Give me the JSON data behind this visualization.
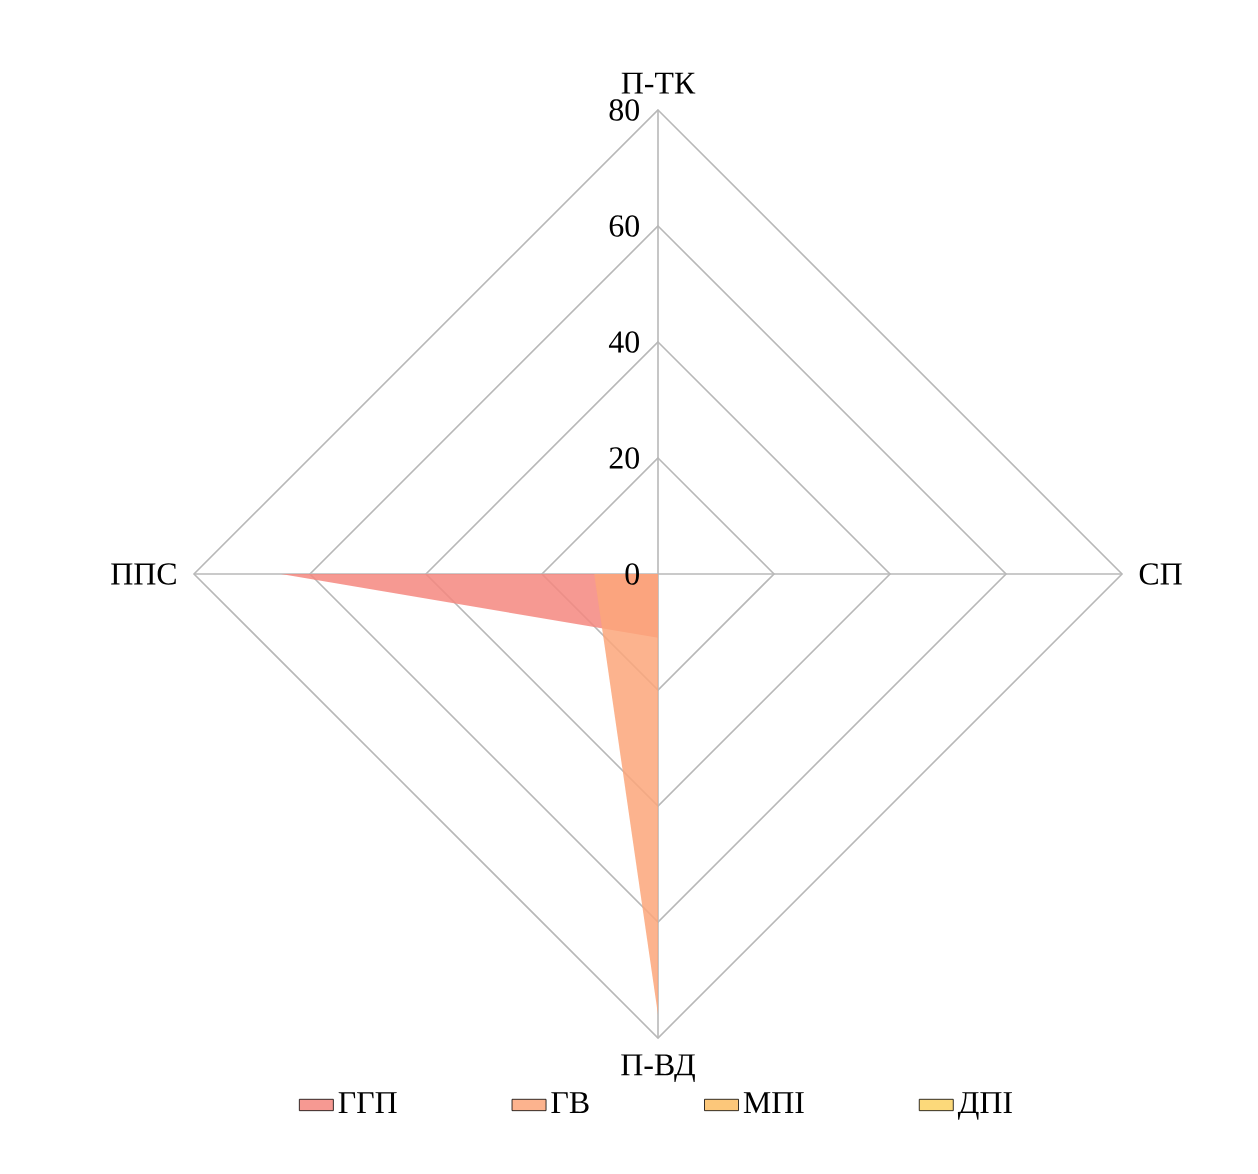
{
  "chart_data": {
    "type": "radar",
    "categories": [
      "П-ТК",
      "СП",
      "П-ВД",
      "ППС"
    ],
    "series": [
      {
        "name": "ГГП",
        "color": "#f4877f",
        "values": [
          0,
          0,
          11,
          65
        ]
      },
      {
        "name": "ГВ",
        "color": "#fca67a",
        "values": [
          0,
          0,
          76,
          11
        ]
      },
      {
        "name": "МПІ",
        "color": "#fcc77a",
        "values": [
          null,
          null,
          null,
          null
        ]
      },
      {
        "name": "ДПІ",
        "color": "#fcd97a",
        "values": [
          null,
          null,
          null,
          null
        ]
      }
    ],
    "ylim": [
      0,
      80
    ],
    "yticks": [
      0,
      20,
      40,
      60,
      80
    ],
    "grid": true,
    "legend": "bottom",
    "marker": "none"
  }
}
